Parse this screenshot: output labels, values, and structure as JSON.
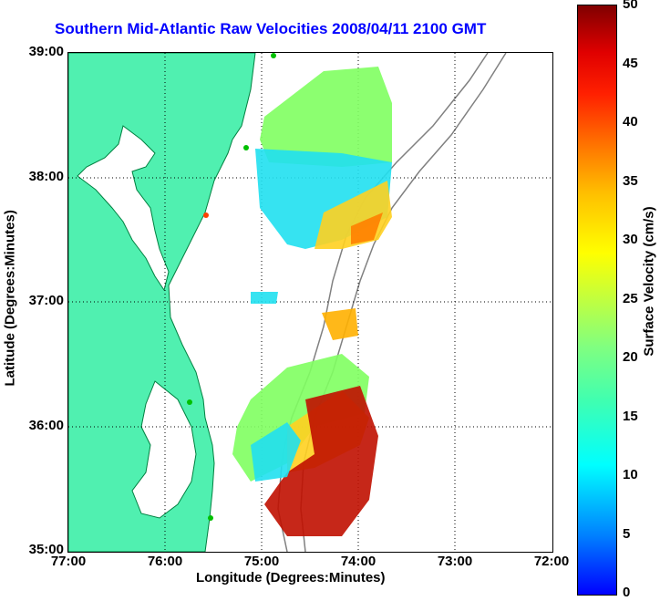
{
  "title": "Southern Mid-Atlantic Raw Velocities 2008/04/11 2100 GMT",
  "x_axis": {
    "label": "Longitude (Degrees:Minutes)",
    "ticks": [
      "77:00",
      "76:00",
      "75:00",
      "74:00",
      "73:00",
      "72:00"
    ]
  },
  "y_axis": {
    "label": "Latitude (Degrees:Minutes)",
    "ticks": [
      "39:00",
      "38:00",
      "37:00",
      "36:00",
      "35:00"
    ]
  },
  "colorbar": {
    "label": "Surface Velocity (cm/s)",
    "ticks": [
      "50",
      "45",
      "40",
      "35",
      "30",
      "25",
      "20",
      "15",
      "10",
      "5",
      "0"
    ],
    "range": [
      0,
      50
    ]
  },
  "map": {
    "land_color": "#50f0b0",
    "coast_color": "#008040",
    "contour_color": "#808080",
    "grid": "dotted",
    "lon_range": [
      -77,
      -72
    ],
    "lat_range": [
      35,
      39
    ]
  }
}
